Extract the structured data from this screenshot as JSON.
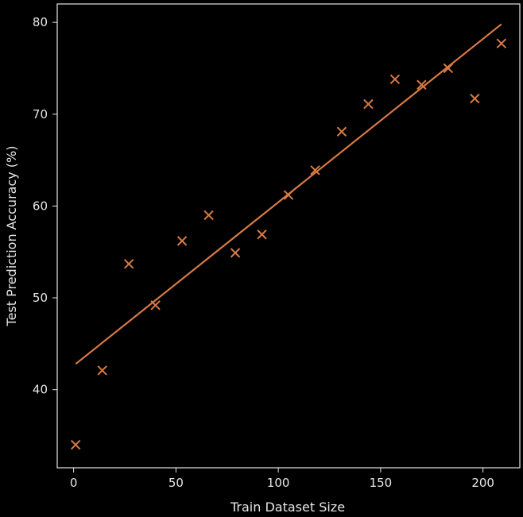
{
  "chart_data": {
    "type": "scatter",
    "xlabel": "Train Dataset Size",
    "ylabel": "Test Prediction Accuracy (%)",
    "xlim": [
      -8,
      218
    ],
    "ylim": [
      31.5,
      82
    ],
    "x_ticks": [
      0,
      50,
      100,
      150,
      200
    ],
    "y_ticks": [
      40,
      50,
      60,
      70,
      80
    ],
    "grid": false,
    "color": "#d87a45",
    "background": "#000000",
    "axis_color": "#e6e6e6",
    "series": [
      {
        "marker": "x",
        "points": [
          {
            "x": 1,
            "y": 34.0
          },
          {
            "x": 14,
            "y": 42.1
          },
          {
            "x": 27,
            "y": 53.7
          },
          {
            "x": 40,
            "y": 49.2
          },
          {
            "x": 53,
            "y": 56.2
          },
          {
            "x": 66,
            "y": 59.0
          },
          {
            "x": 79,
            "y": 54.9
          },
          {
            "x": 92,
            "y": 56.9
          },
          {
            "x": 105,
            "y": 61.2
          },
          {
            "x": 118,
            "y": 63.9
          },
          {
            "x": 131,
            "y": 68.1
          },
          {
            "x": 144,
            "y": 71.1
          },
          {
            "x": 157,
            "y": 73.8
          },
          {
            "x": 170,
            "y": 73.2
          },
          {
            "x": 183,
            "y": 75.0
          },
          {
            "x": 196,
            "y": 71.7
          },
          {
            "x": 209,
            "y": 77.7
          }
        ]
      }
    ],
    "fit_line": {
      "x": [
        1,
        209
      ],
      "y": [
        42.8,
        79.8
      ]
    }
  }
}
